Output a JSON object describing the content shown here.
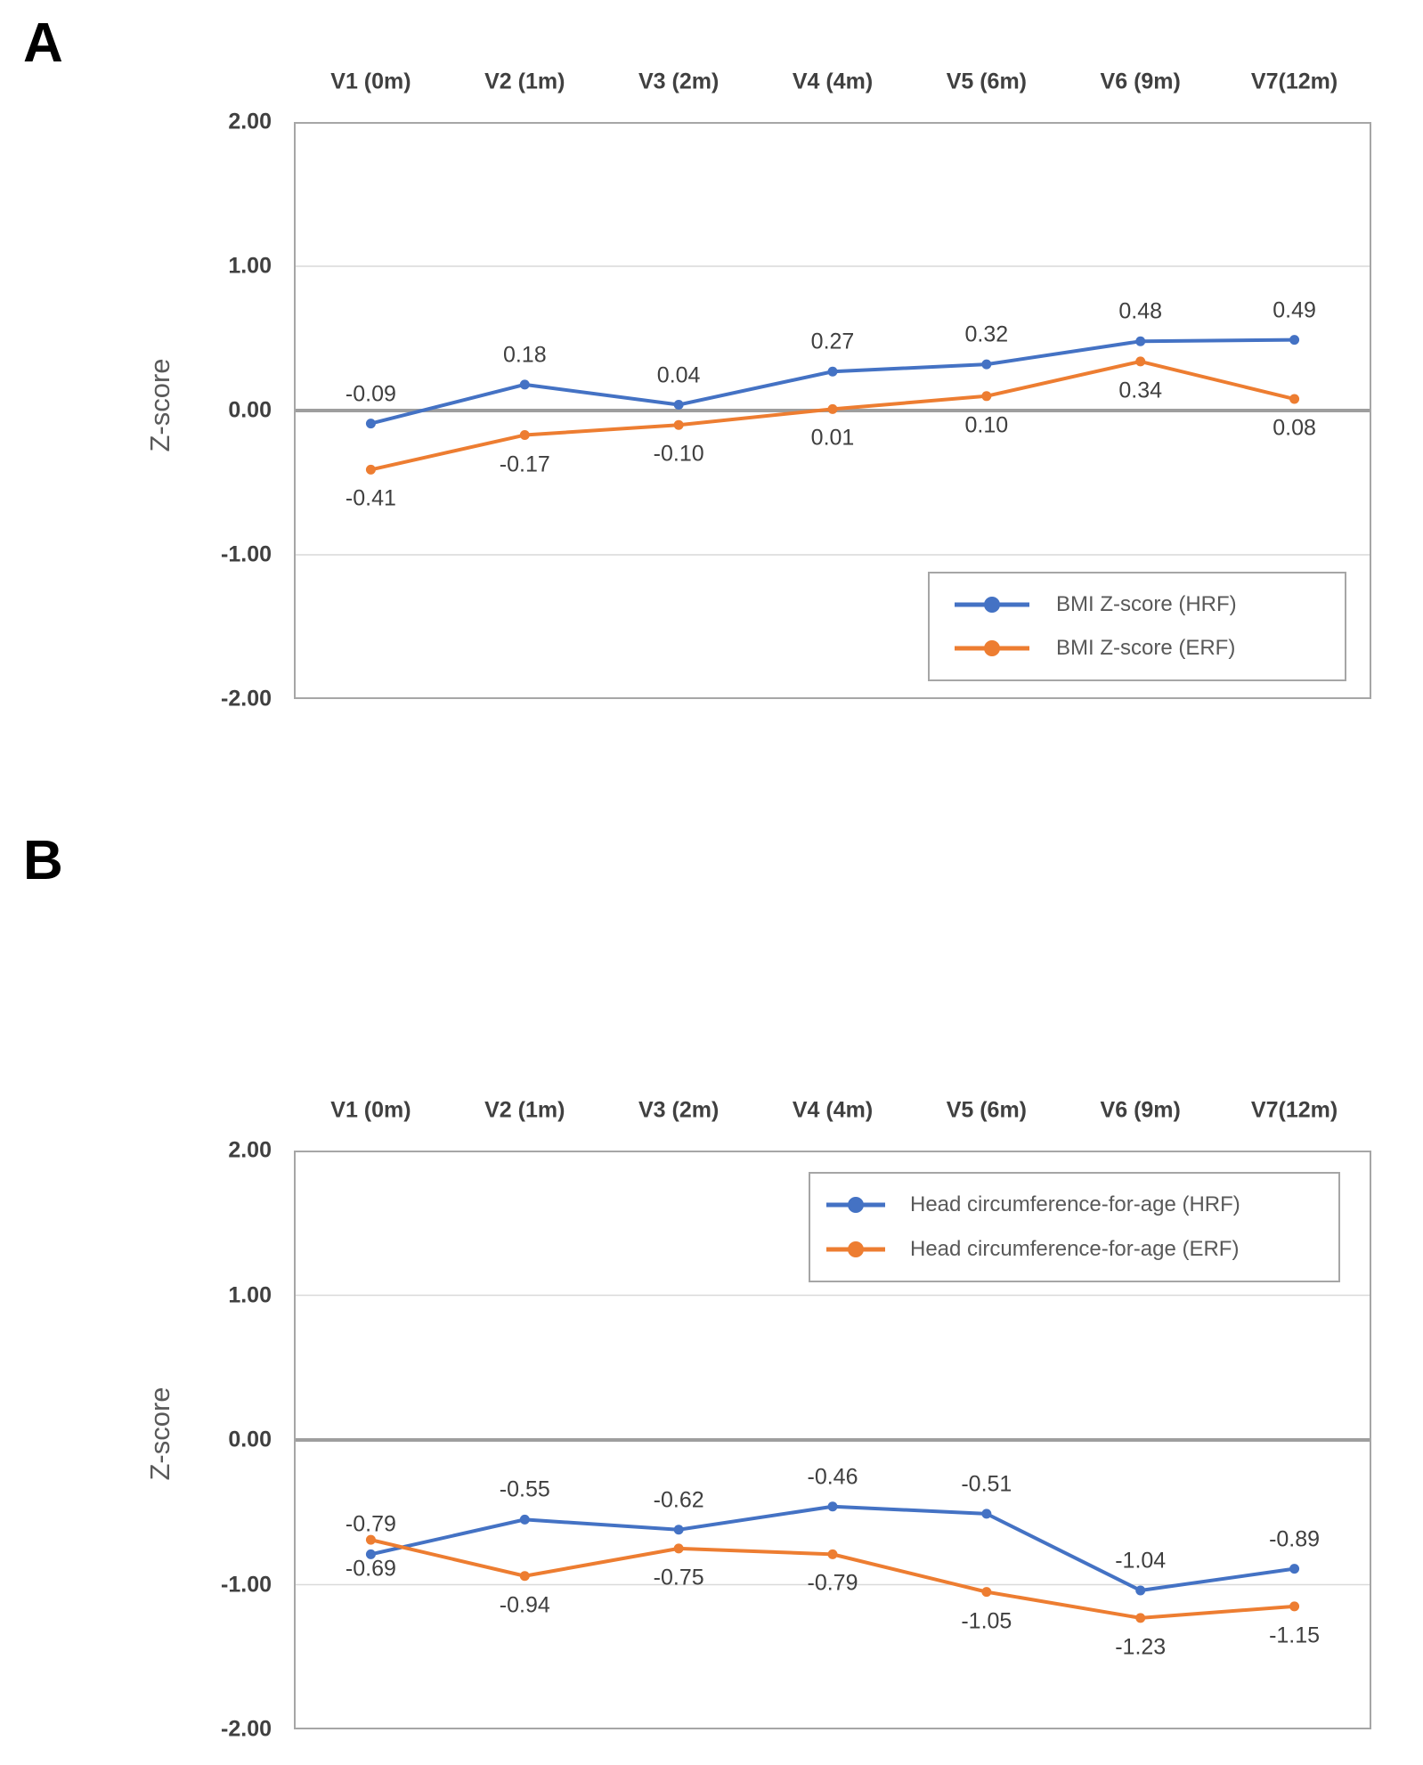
{
  "page": {
    "background": "#ffffff"
  },
  "panels": [
    {
      "letter": "A"
    },
    {
      "letter": "B"
    }
  ],
  "colors": {
    "hrf": "#4472C4",
    "erf": "#ED7D31",
    "grid": "#D9D9D9",
    "zero_line": "#9E9E9E",
    "plot_border": "#A6A6A6",
    "axis_text": "#404040",
    "data_label_text": "#3F3F3F",
    "legend_text": "#595959",
    "panel_letter": "#000000"
  },
  "chart_data": [
    {
      "id": "A",
      "type": "line",
      "title": "",
      "xlabel": "",
      "ylabel": "Z-score",
      "ylim": [
        -2,
        2
      ],
      "grid": "horizontal",
      "legend_position": "inside-bottom-right",
      "yticks": [
        {
          "value": 2,
          "label": "2.00"
        },
        {
          "value": 1,
          "label": "1.00"
        },
        {
          "value": 0,
          "label": "0.00"
        },
        {
          "value": -1,
          "label": "-1.00"
        },
        {
          "value": -2,
          "label": "-2.00"
        }
      ],
      "categories": [
        "V1 (0m)",
        "V2 (1m)",
        "V3 (2m)",
        "V4 (4m)",
        "V5 (6m)",
        "V6 (9m)",
        "V7(12m)"
      ],
      "series": [
        {
          "name": "BMI Z-score (HRF)",
          "color": "hrf",
          "label_side": "above",
          "values": [
            -0.09,
            0.18,
            0.04,
            0.27,
            0.32,
            0.48,
            0.49
          ],
          "labels": [
            "-0.09",
            "0.18",
            "0.04",
            "0.27",
            "0.32",
            "0.48",
            "0.49"
          ]
        },
        {
          "name": "BMI Z-score (ERF)",
          "color": "erf",
          "label_side": "below",
          "values": [
            -0.41,
            -0.17,
            -0.1,
            0.01,
            0.1,
            0.34,
            0.08
          ],
          "labels": [
            "-0.41",
            "-0.17",
            "-0.10",
            "0.01",
            "0.10",
            "0.34",
            "0.08"
          ]
        }
      ]
    },
    {
      "id": "B",
      "type": "line",
      "title": "",
      "xlabel": "",
      "ylabel": "Z-score",
      "ylim": [
        -2,
        2
      ],
      "grid": "horizontal",
      "legend_position": "inside-top-right",
      "yticks": [
        {
          "value": 2,
          "label": "2.00"
        },
        {
          "value": 1,
          "label": "1.00"
        },
        {
          "value": 0,
          "label": "0.00"
        },
        {
          "value": -1,
          "label": "-1.00"
        },
        {
          "value": -2,
          "label": "-2.00"
        }
      ],
      "categories": [
        "V1 (0m)",
        "V2 (1m)",
        "V3 (2m)",
        "V4 (4m)",
        "V5 (6m)",
        "V6 (9m)",
        "V7(12m)"
      ],
      "series": [
        {
          "name": "Head circumference-for-age (HRF)",
          "color": "hrf",
          "label_side": "above",
          "values": [
            -0.79,
            -0.55,
            -0.62,
            -0.46,
            -0.51,
            -1.04,
            -0.89
          ],
          "labels": [
            "-0.79",
            "-0.55",
            "-0.62",
            "-0.46",
            "-0.51",
            "-1.04",
            "-0.89"
          ]
        },
        {
          "name": "Head circumference-for-age (ERF)",
          "color": "erf",
          "label_side": "below",
          "values": [
            -0.69,
            -0.94,
            -0.75,
            -0.79,
            -1.05,
            -1.23,
            -1.15
          ],
          "labels": [
            "-0.69",
            "-0.94",
            "-0.75",
            "-0.79",
            "-1.05",
            "-1.23",
            "-1.15"
          ]
        }
      ]
    }
  ]
}
